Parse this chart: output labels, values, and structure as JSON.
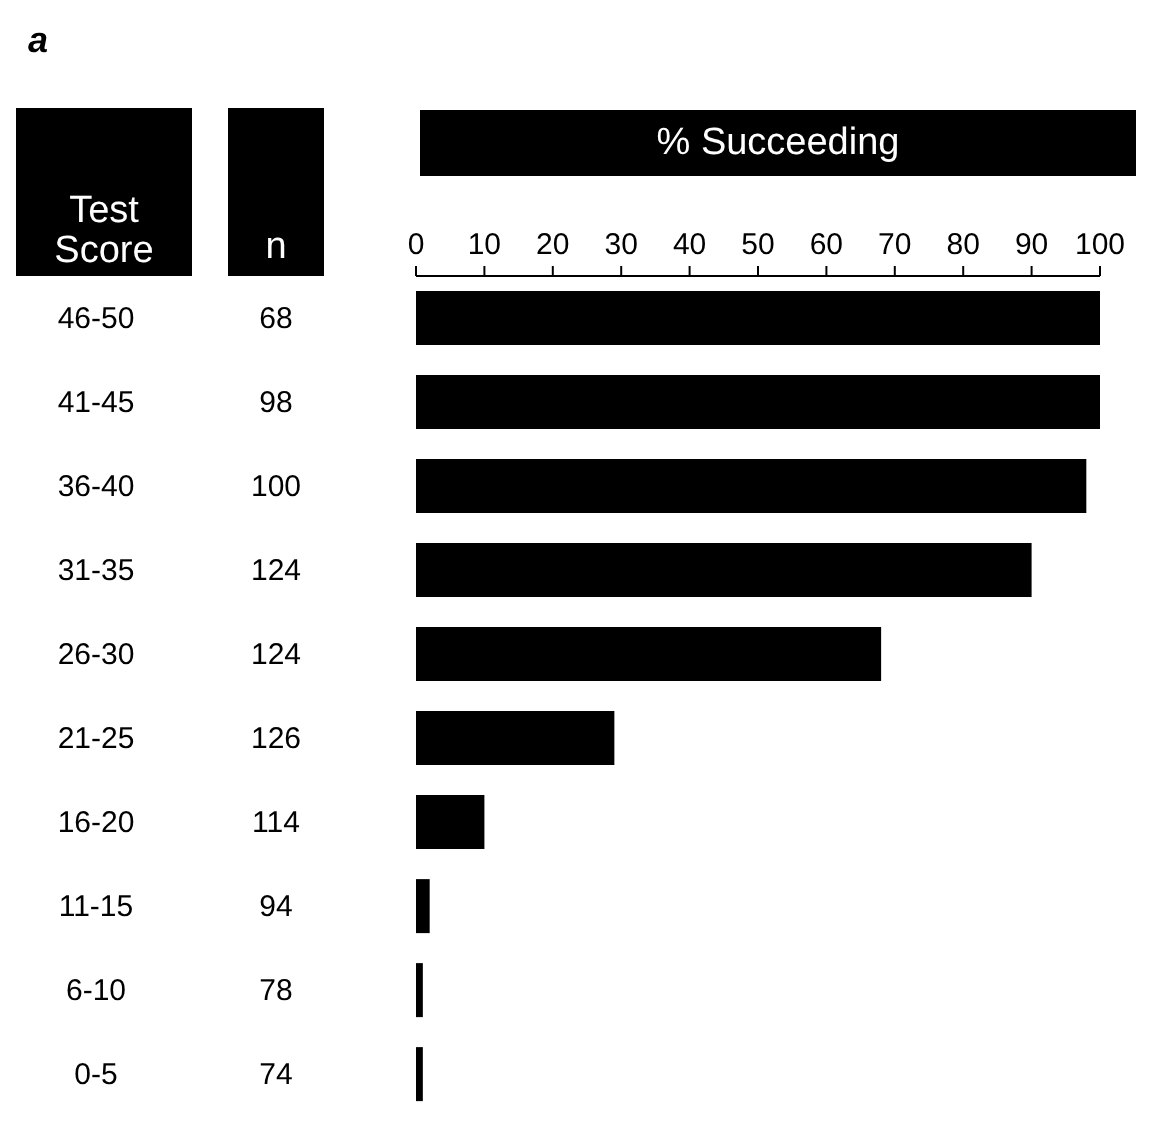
{
  "chart_data": {
    "type": "bar",
    "orientation": "horizontal",
    "title": "a",
    "xlabel": "% Succeeding",
    "ylabel": "Test Score",
    "categories": [
      "46-50",
      "41-45",
      "36-40",
      "31-35",
      "26-30",
      "21-25",
      "16-20",
      "11-15",
      "6-10",
      "0-5"
    ],
    "series": [
      {
        "axis": "x2",
        "color": "#000000",
        "values": [
          100,
          100,
          98,
          90,
          68,
          29,
          10,
          2,
          1,
          1
        ]
      }
    ],
    "x2lim": [
      0,
      100
    ],
    "x2ticks": [
      0,
      10,
      20,
      30,
      40,
      50,
      60,
      70,
      80,
      90,
      100
    ],
    "grid": false,
    "annotations": [
      "n",
      "68",
      "98",
      "100",
      "124",
      "124",
      "126",
      "114",
      "94",
      "78",
      "74"
    ]
  }
}
